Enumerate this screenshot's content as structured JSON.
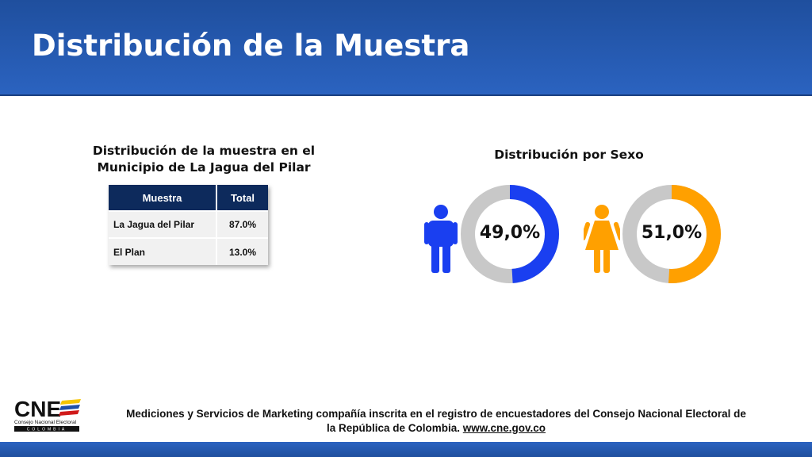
{
  "header": {
    "title": "Distribución de la Muestra"
  },
  "sample_table": {
    "title_line1": "Distribución de la muestra en el",
    "title_line2": "Municipio de La Jagua del Pilar",
    "columns": [
      "Muestra",
      "Total"
    ],
    "rows": [
      {
        "label": "La Jagua del Pilar",
        "value": "87.0%"
      },
      {
        "label": "El Plan",
        "value": "13.0%"
      }
    ]
  },
  "sex_distribution": {
    "title": "Distribución por Sexo",
    "male": {
      "label": "49,0%",
      "value": 49.0,
      "color": "#1a3ff0",
      "icon": "male-person-icon"
    },
    "female": {
      "label": "51,0%",
      "value": 51.0,
      "color": "#ffa000",
      "icon": "female-person-icon"
    },
    "track_color": "#c8c8c8"
  },
  "footer": {
    "logo_text": "CNE",
    "logo_subtitle": "Consejo Nacional Electoral",
    "logo_country": "COLOMBIA",
    "line1": "Mediciones y Servicios de Marketing compañía inscrita en el registro de encuestadores del Consejo Nacional Electoral de",
    "line2_prefix": "la República de Colombia. ",
    "link": "www.cne.gov.co"
  }
}
